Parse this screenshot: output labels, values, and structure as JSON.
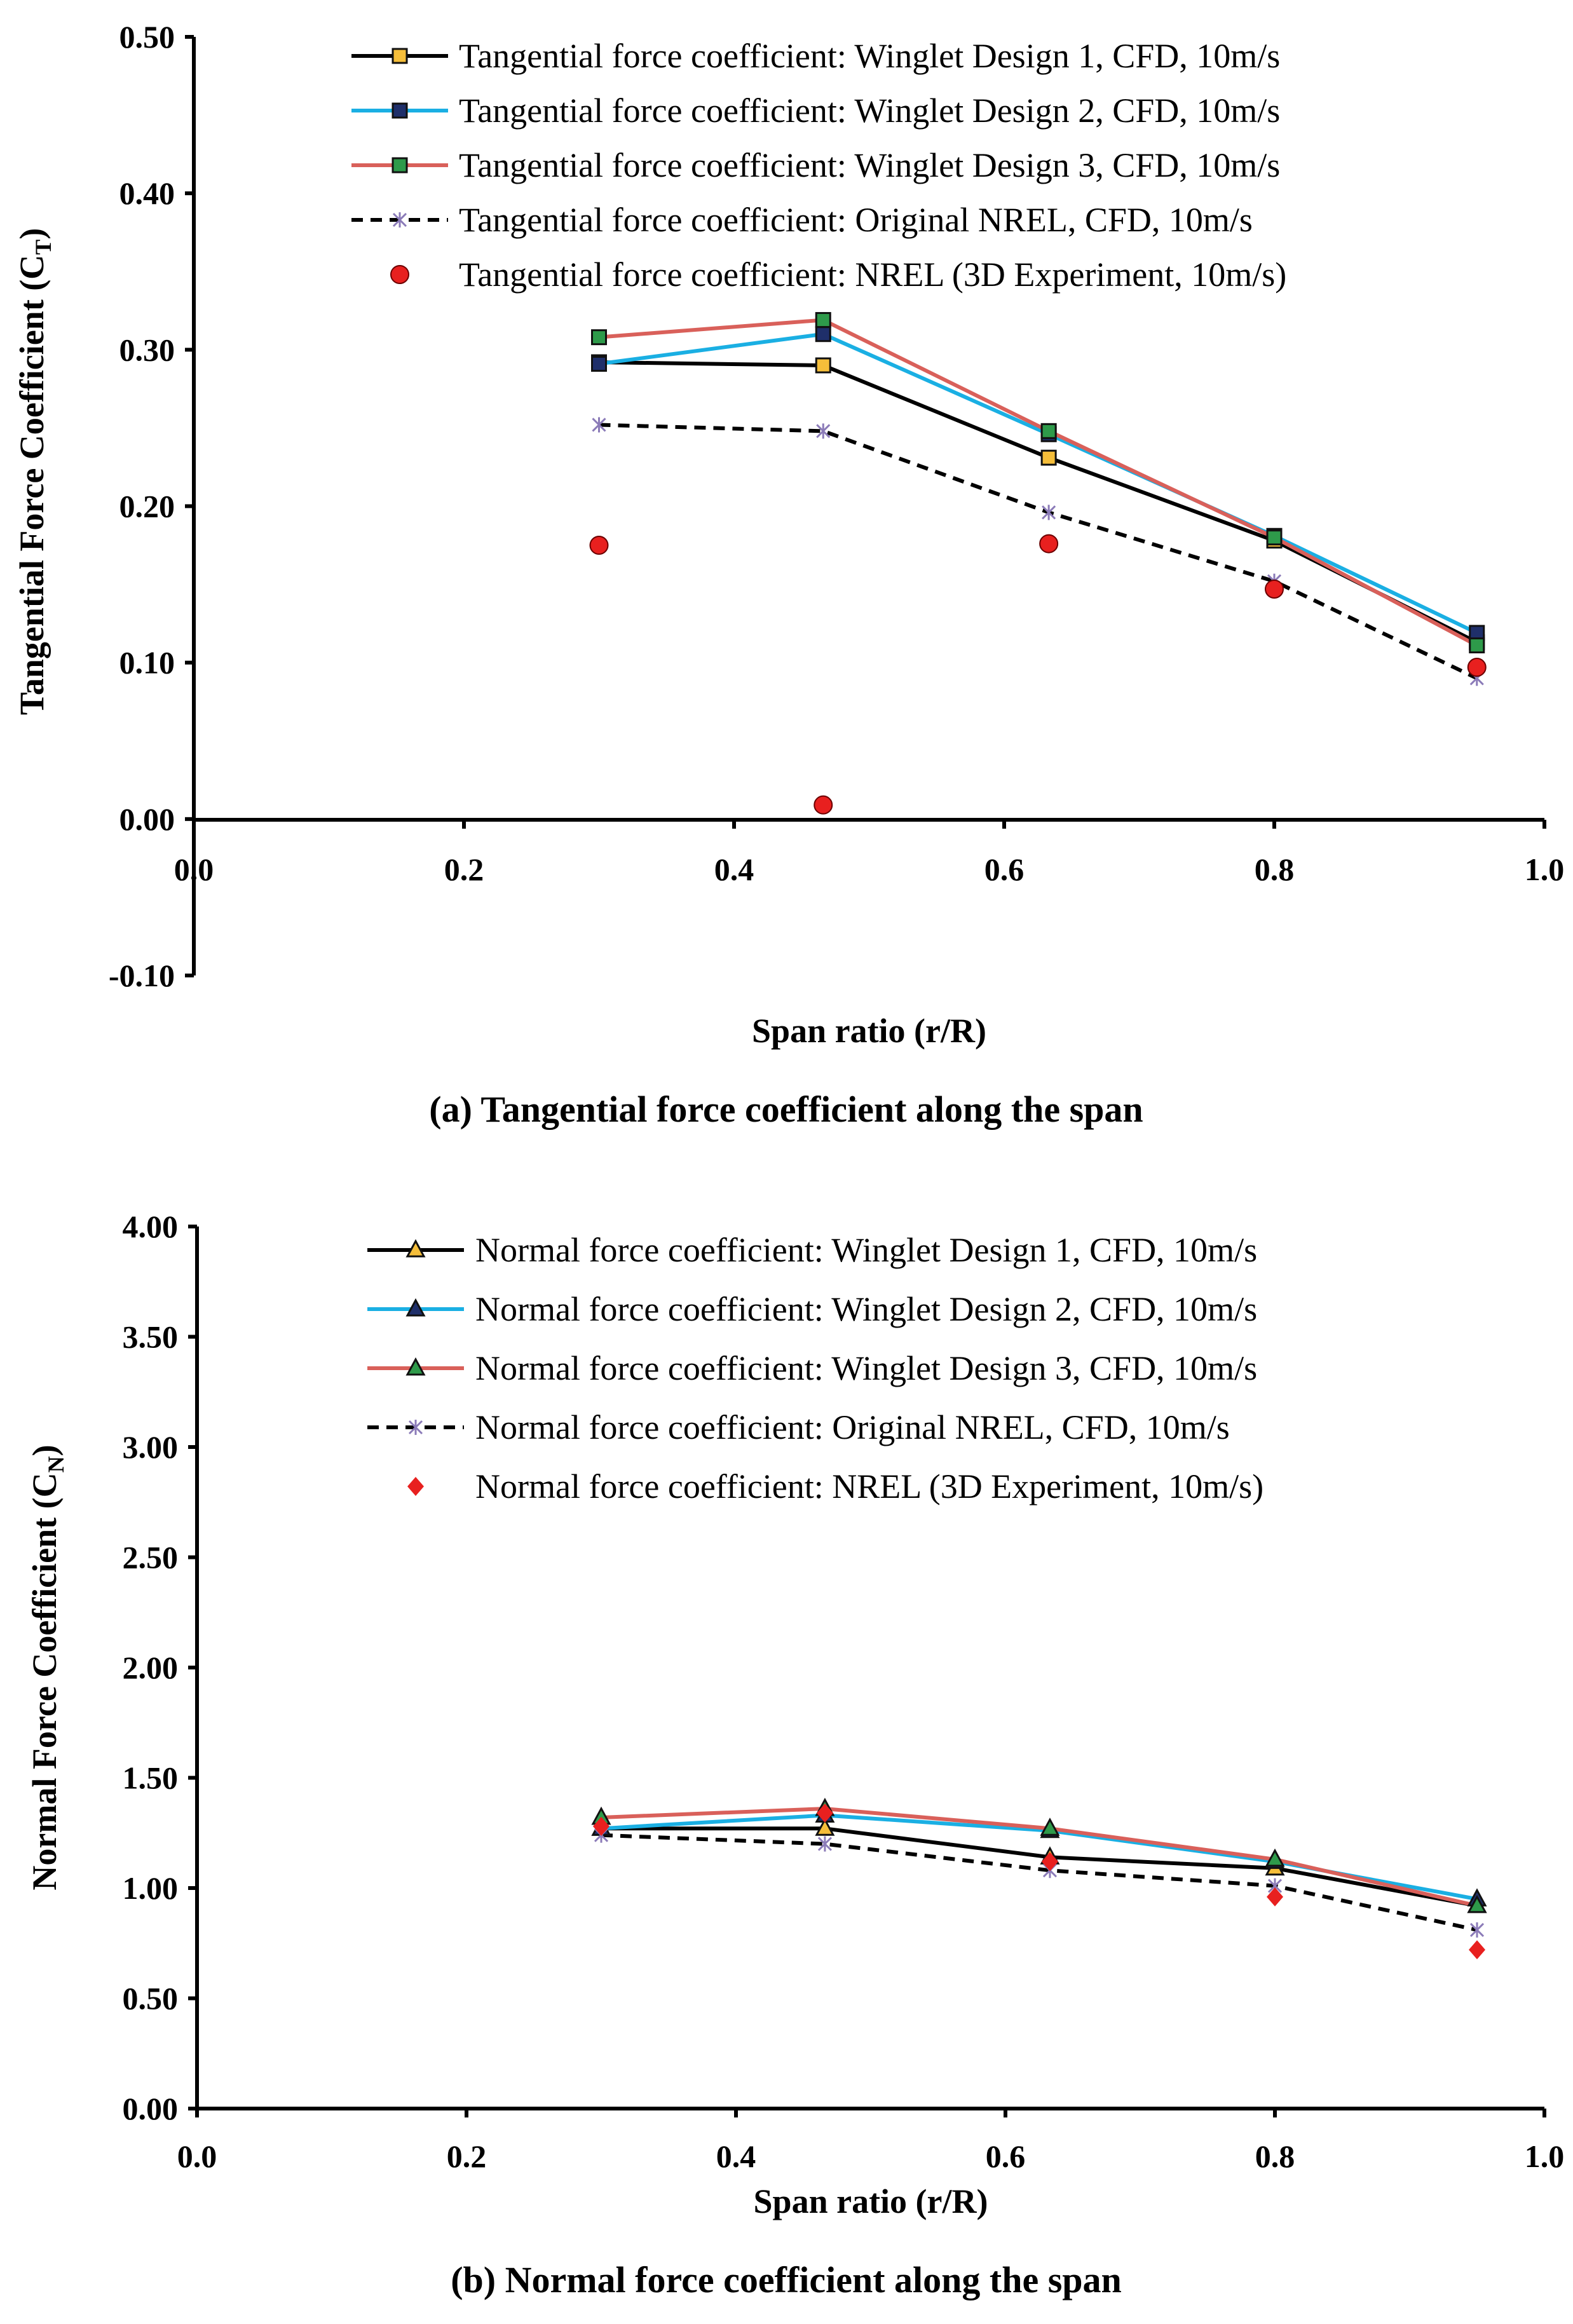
{
  "chart_data": [
    {
      "type": "line",
      "caption": "(a) Tangential force coefficient along the span",
      "xlabel": "Span ratio (r/R)",
      "ylabel": "Tangential Force Coefficient",
      "ylabel_symbol": "C",
      "ylabel_sub": "T",
      "xlim": [
        0.0,
        1.0
      ],
      "ylim": [
        -0.1,
        0.5
      ],
      "xticks": [
        "0.0",
        "0.2",
        "0.4",
        "0.6",
        "0.8",
        "1.0"
      ],
      "yticks": [
        "-0.10",
        "0.00",
        "0.10",
        "0.20",
        "0.30",
        "0.40",
        "0.50"
      ],
      "legend_position": "top-right",
      "series": [
        {
          "name": "Tangential force coefficient: Winglet Design 1, CFD, 10m/s",
          "x": [
            0.3,
            0.466,
            0.633,
            0.8,
            0.95
          ],
          "values": [
            0.292,
            0.29,
            0.231,
            0.178,
            0.113
          ],
          "color": "#000000",
          "marker": "square",
          "marker_fill": "#F5BE3A",
          "dash": "solid"
        },
        {
          "name": "Tangential force coefficient: Winglet Design 2, CFD, 10m/s",
          "x": [
            0.3,
            0.466,
            0.633,
            0.8,
            0.95
          ],
          "values": [
            0.291,
            0.31,
            0.246,
            0.181,
            0.119
          ],
          "color": "#1AAFE3",
          "marker": "square",
          "marker_fill": "#1F2F6A",
          "dash": "solid"
        },
        {
          "name": "Tangential force coefficient: Winglet Design 3, CFD, 10m/s",
          "x": [
            0.3,
            0.466,
            0.633,
            0.8,
            0.95
          ],
          "values": [
            0.308,
            0.319,
            0.248,
            0.18,
            0.111
          ],
          "color": "#D9605A",
          "marker": "square",
          "marker_fill": "#2E9A4A",
          "dash": "solid"
        },
        {
          "name": "Tangential force coefficient: Original NREL, CFD, 10m/s",
          "x": [
            0.3,
            0.466,
            0.633,
            0.8,
            0.95
          ],
          "values": [
            0.252,
            0.248,
            0.196,
            0.152,
            0.09
          ],
          "color": "#000000",
          "marker": "star",
          "marker_fill": "#8B7BB8",
          "dash": "dashed"
        },
        {
          "name": "Tangential force coefficient: NREL (3D Experiment, 10m/s)",
          "x": [
            0.3,
            0.466,
            0.633,
            0.8,
            0.95
          ],
          "values": [
            0.175,
            0.009,
            0.176,
            0.147,
            0.097
          ],
          "color": "none",
          "marker": "circle",
          "marker_fill": "#E8201F",
          "dash": "none"
        }
      ]
    },
    {
      "type": "line",
      "caption": "(b) Normal force coefficient along the span",
      "xlabel": "Span ratio (r/R)",
      "ylabel": "Normal Force Coefficient",
      "ylabel_symbol": "C",
      "ylabel_sub": "N",
      "xlim": [
        0.0,
        1.0
      ],
      "ylim": [
        0.0,
        4.0
      ],
      "xticks": [
        "0.0",
        "0.2",
        "0.4",
        "0.6",
        "0.8",
        "1.0"
      ],
      "yticks": [
        "0.00",
        "0.50",
        "1.00",
        "1.50",
        "2.00",
        "2.50",
        "3.00",
        "3.50",
        "4.00"
      ],
      "legend_position": "top-right",
      "series": [
        {
          "name": "Normal force coefficient: Winglet Design 1, CFD, 10m/s",
          "x": [
            0.3,
            0.466,
            0.633,
            0.8,
            0.95
          ],
          "values": [
            1.27,
            1.27,
            1.14,
            1.09,
            0.92
          ],
          "color": "#000000",
          "marker": "triangle",
          "marker_fill": "#F5BE3A",
          "dash": "solid"
        },
        {
          "name": "Normal force coefficient: Winglet Design 2, CFD, 10m/s",
          "x": [
            0.3,
            0.466,
            0.633,
            0.8,
            0.95
          ],
          "values": [
            1.27,
            1.33,
            1.26,
            1.12,
            0.95
          ],
          "color": "#1AAFE3",
          "marker": "triangle",
          "marker_fill": "#1F2F6A",
          "dash": "solid"
        },
        {
          "name": "Normal force coefficient: Winglet Design 3, CFD, 10m/s",
          "x": [
            0.3,
            0.466,
            0.633,
            0.8,
            0.95
          ],
          "values": [
            1.32,
            1.36,
            1.27,
            1.13,
            0.92
          ],
          "color": "#D9605A",
          "marker": "triangle",
          "marker_fill": "#2E9A4A",
          "dash": "solid"
        },
        {
          "name": "Normal force coefficient: Original NREL, CFD, 10m/s",
          "x": [
            0.3,
            0.466,
            0.633,
            0.8,
            0.95
          ],
          "values": [
            1.24,
            1.2,
            1.08,
            1.01,
            0.81
          ],
          "color": "#000000",
          "marker": "star",
          "marker_fill": "#8B7BB8",
          "dash": "dashed"
        },
        {
          "name": "Normal force coefficient: NREL (3D Experiment, 10m/s)",
          "x": [
            0.3,
            0.466,
            0.633,
            0.8,
            0.95
          ],
          "values": [
            1.28,
            1.34,
            1.12,
            0.96,
            0.72
          ],
          "color": "none",
          "marker": "diamond",
          "marker_fill": "#E8201F",
          "dash": "none"
        }
      ]
    }
  ]
}
